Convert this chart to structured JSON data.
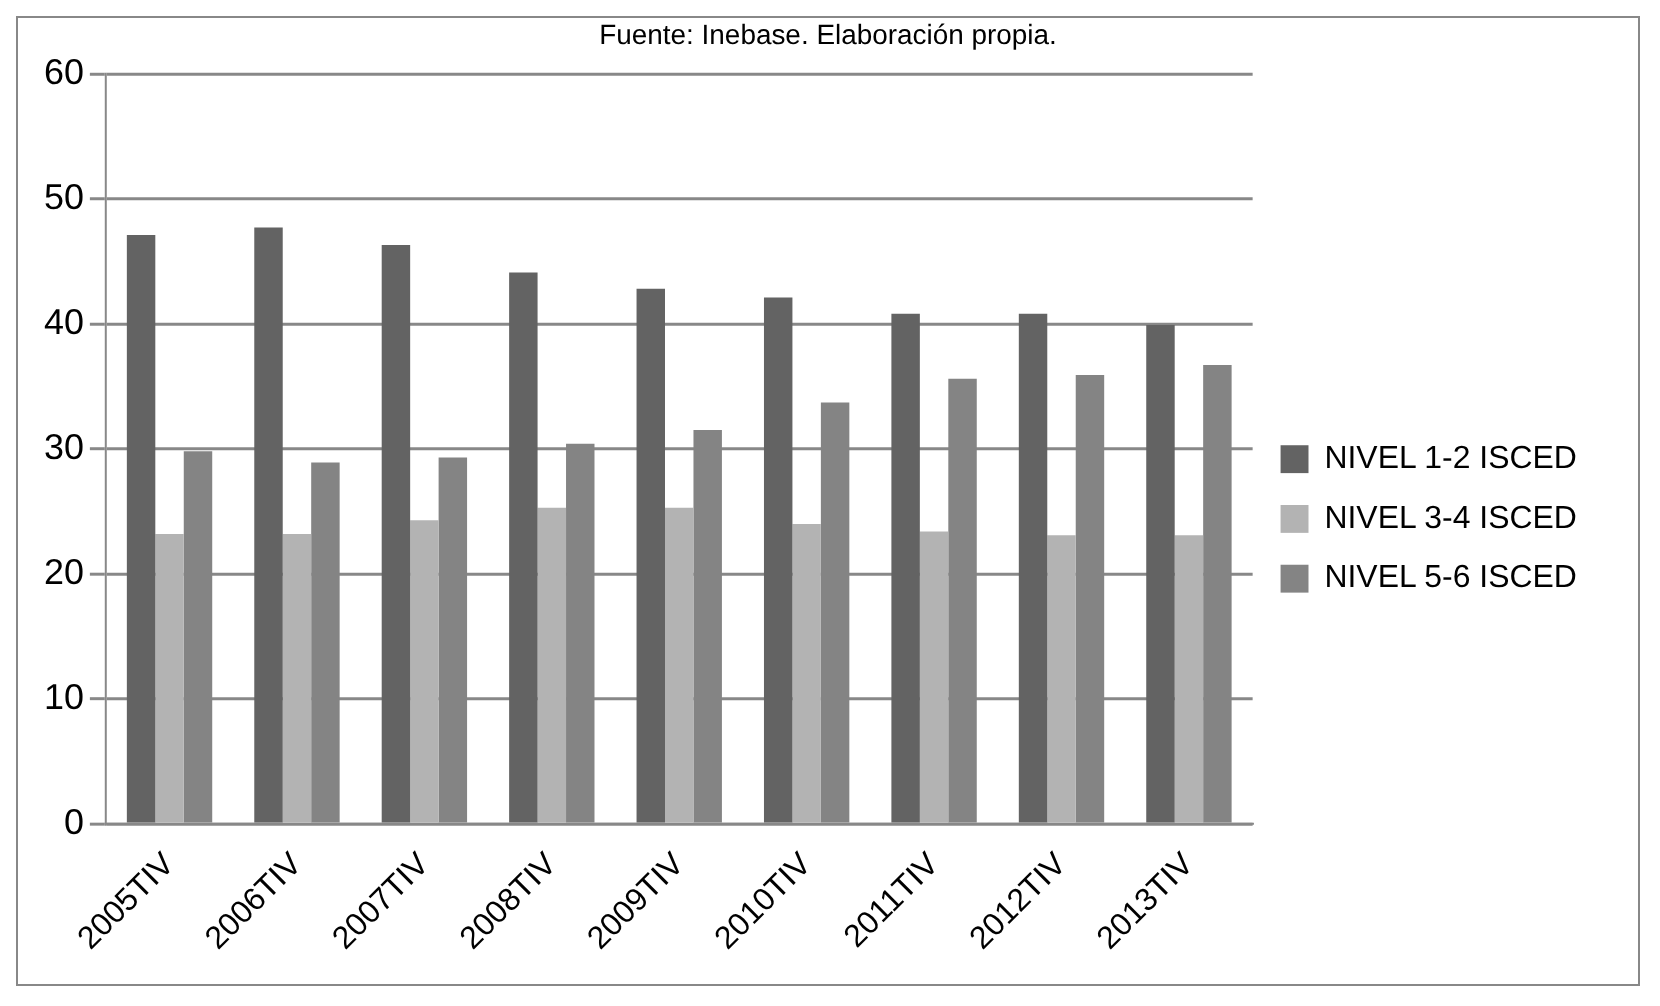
{
  "chart_data": {
    "type": "bar",
    "annotations": [
      "Fuente: Inebase. Elaboración propia."
    ],
    "categories": [
      "2005TIV",
      "2006TIV",
      "2007TIV",
      "2008TIV",
      "2009TIV",
      "2010TIV",
      "2011TIV",
      "2012TIV",
      "2013TIV"
    ],
    "series": [
      {
        "name": "NIVEL 1-2 ISCED",
        "color": "#636363",
        "values": [
          47.1,
          47.7,
          46.3,
          44.1,
          42.8,
          42.1,
          40.8,
          40.8,
          39.9
        ]
      },
      {
        "name": "NIVEL 3-4 ISCED",
        "color": "#b3b3b3",
        "values": [
          23.2,
          23.2,
          24.3,
          25.3,
          25.3,
          24.0,
          23.4,
          23.1,
          23.1
        ]
      },
      {
        "name": "NIVEL 5-6 ISCED",
        "color": "#848484",
        "values": [
          29.8,
          28.9,
          29.3,
          30.4,
          31.5,
          33.7,
          35.6,
          35.9,
          36.7
        ]
      }
    ],
    "ylim": [
      0,
      60
    ],
    "yticks": [
      0,
      10,
      20,
      30,
      40,
      50,
      60
    ],
    "grid": "y",
    "legend": "right"
  }
}
